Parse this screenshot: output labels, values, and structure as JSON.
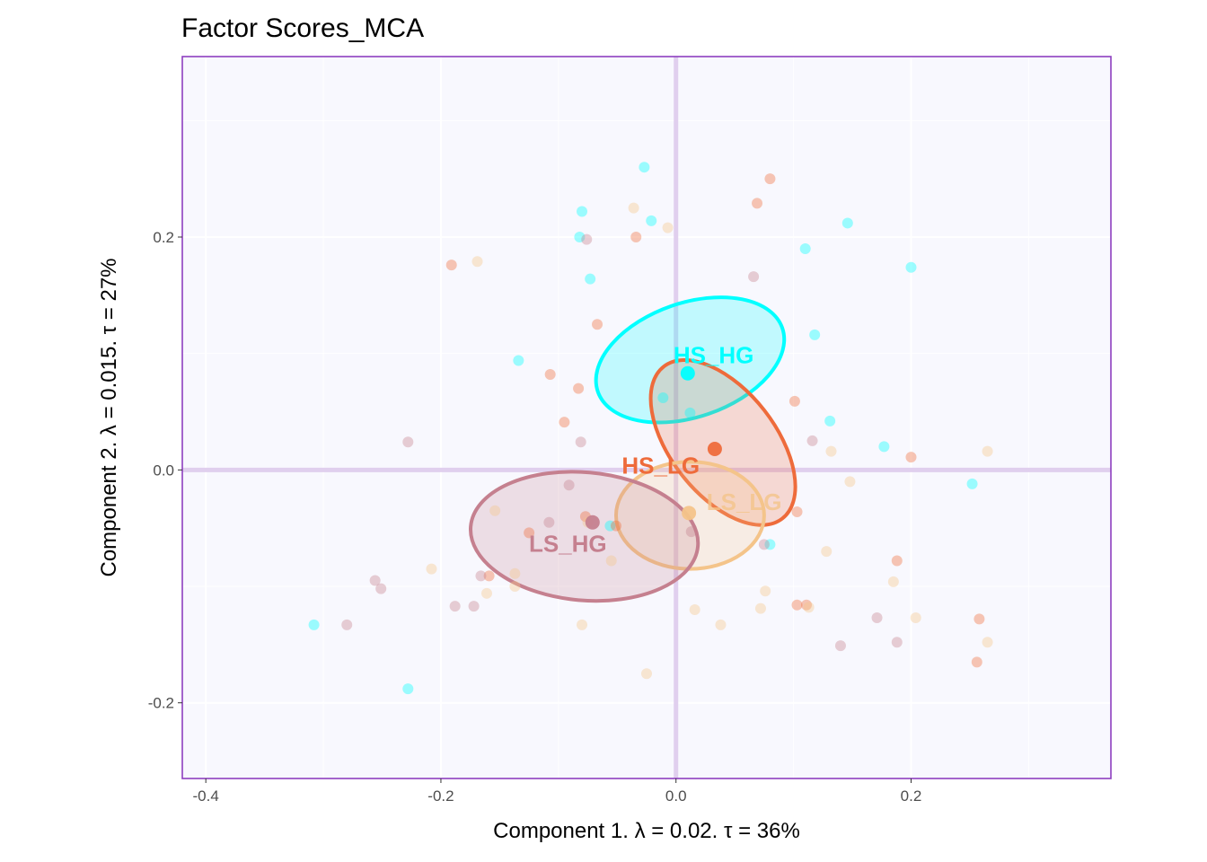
{
  "chart_data": {
    "type": "scatter",
    "title": "Factor Scores_MCA",
    "xlabel": "Component 1.   λ = 0.02.  τ = 36%",
    "ylabel": "Component 2.   λ = 0.015.  τ = 27%",
    "xlim": [
      -0.42,
      0.37
    ],
    "ylim": [
      -0.265,
      0.355
    ],
    "x_ticks": [
      -0.4,
      -0.2,
      0.0,
      0.2
    ],
    "x_tick_labels": [
      "-0.4",
      "-0.2",
      "0.0",
      "0.2"
    ],
    "y_ticks": [
      -0.2,
      0.0,
      0.2
    ],
    "y_tick_labels": [
      "-0.2",
      "0.0",
      "0.2"
    ],
    "grid": true,
    "legend": "none",
    "colors": {
      "panel_background": "#f8f8fe",
      "panel_border": "#8e3fbf",
      "gridline": "#ffffff",
      "origin_axes": "#e0cfee",
      "HS_HG": "#00ffff",
      "HS_LG": "#ee6b3b",
      "LS_LG": "#f4c48a",
      "LS_HG": "#c5808f"
    },
    "series": [
      {
        "name": "HS_HG",
        "color": "#00ffff",
        "points": [
          [
            -0.027,
            0.26
          ],
          [
            -0.08,
            0.222
          ],
          [
            -0.021,
            0.214
          ],
          [
            -0.082,
            0.2
          ],
          [
            -0.073,
            0.164
          ],
          [
            0.146,
            0.212
          ],
          [
            0.11,
            0.19
          ],
          [
            0.2,
            0.174
          ],
          [
            0.118,
            0.116
          ],
          [
            -0.134,
            0.094
          ],
          [
            -0.011,
            0.062
          ],
          [
            0.012,
            0.049
          ],
          [
            0.131,
            0.042
          ],
          [
            0.177,
            0.02
          ],
          [
            0.252,
            -0.012
          ],
          [
            -0.056,
            -0.048
          ],
          [
            0.08,
            -0.064
          ],
          [
            -0.308,
            -0.133
          ],
          [
            -0.228,
            -0.188
          ]
        ],
        "mean": [
          0.01,
          0.083
        ],
        "ellipse": {
          "cx": 0.012,
          "cy": 0.0945,
          "rx": 0.083,
          "ry": 0.049,
          "angle_deg": 19
        }
      },
      {
        "name": "HS_LG",
        "color": "#ee6b3b",
        "points": [
          [
            0.08,
            0.25
          ],
          [
            0.069,
            0.229
          ],
          [
            -0.034,
            0.2
          ],
          [
            -0.191,
            0.176
          ],
          [
            -0.067,
            0.125
          ],
          [
            -0.107,
            0.082
          ],
          [
            -0.083,
            0.07
          ],
          [
            0.101,
            0.059
          ],
          [
            -0.095,
            0.041
          ],
          [
            0.2,
            0.011
          ],
          [
            -0.125,
            -0.054
          ],
          [
            -0.077,
            -0.04
          ],
          [
            -0.051,
            -0.048
          ],
          [
            0.103,
            -0.036
          ],
          [
            0.188,
            -0.078
          ],
          [
            -0.159,
            -0.091
          ],
          [
            0.103,
            -0.116
          ],
          [
            0.111,
            -0.116
          ],
          [
            0.258,
            -0.128
          ],
          [
            0.256,
            -0.165
          ]
        ],
        "mean": [
          0.033,
          0.018
        ],
        "ellipse": {
          "cx": 0.04,
          "cy": 0.0235,
          "rx": 0.082,
          "ry": 0.045,
          "angle_deg": -52
        }
      },
      {
        "name": "LS_LG",
        "color": "#f4c48a",
        "points": [
          [
            -0.036,
            0.225
          ],
          [
            -0.007,
            0.208
          ],
          [
            -0.169,
            0.179
          ],
          [
            0.132,
            0.016
          ],
          [
            0.265,
            0.016
          ],
          [
            0.148,
            -0.01
          ],
          [
            -0.154,
            -0.035
          ],
          [
            -0.075,
            -0.045
          ],
          [
            0.128,
            -0.07
          ],
          [
            -0.055,
            -0.078
          ],
          [
            -0.208,
            -0.085
          ],
          [
            -0.137,
            -0.089
          ],
          [
            0.185,
            -0.096
          ],
          [
            -0.137,
            -0.1
          ],
          [
            0.076,
            -0.104
          ],
          [
            -0.161,
            -0.106
          ],
          [
            0.072,
            -0.119
          ],
          [
            0.113,
            -0.118
          ],
          [
            0.204,
            -0.127
          ],
          [
            -0.08,
            -0.133
          ],
          [
            0.038,
            -0.133
          ],
          [
            0.265,
            -0.148
          ],
          [
            -0.025,
            -0.175
          ],
          [
            0.016,
            -0.12
          ]
        ],
        "mean": [
          0.011,
          -0.037
        ],
        "ellipse": {
          "cx": 0.012,
          "cy": -0.039,
          "rx": 0.063,
          "ry": 0.046,
          "angle_deg": 0
        }
      },
      {
        "name": "LS_HG",
        "color": "#c5808f",
        "points": [
          [
            -0.076,
            0.198
          ],
          [
            0.066,
            0.166
          ],
          [
            -0.228,
            0.024
          ],
          [
            -0.081,
            0.024
          ],
          [
            0.116,
            0.025
          ],
          [
            -0.091,
            -0.013
          ],
          [
            -0.108,
            -0.045
          ],
          [
            0.013,
            -0.053
          ],
          [
            0.075,
            -0.064
          ],
          [
            -0.256,
            -0.095
          ],
          [
            -0.251,
            -0.102
          ],
          [
            -0.166,
            -0.091
          ],
          [
            -0.188,
            -0.117
          ],
          [
            -0.172,
            -0.117
          ],
          [
            0.171,
            -0.127
          ],
          [
            -0.28,
            -0.133
          ],
          [
            0.14,
            -0.151
          ],
          [
            0.188,
            -0.148
          ]
        ],
        "mean": [
          -0.071,
          -0.045
        ],
        "ellipse": {
          "cx": -0.078,
          "cy": -0.057,
          "rx": 0.097,
          "ry": 0.055,
          "angle_deg": -5
        }
      }
    ],
    "group_labels": [
      {
        "text": "HS_HG",
        "series": "HS_HG",
        "x": 0.032,
        "y": 0.097
      },
      {
        "text": "HS_LG",
        "series": "HS_LG",
        "x": -0.013,
        "y": 0.002
      },
      {
        "text": "LS_LG",
        "series": "LS_LG",
        "x": 0.058,
        "y": -0.029
      },
      {
        "text": "LS_HG",
        "series": "LS_HG",
        "x": -0.092,
        "y": -0.065
      }
    ]
  }
}
